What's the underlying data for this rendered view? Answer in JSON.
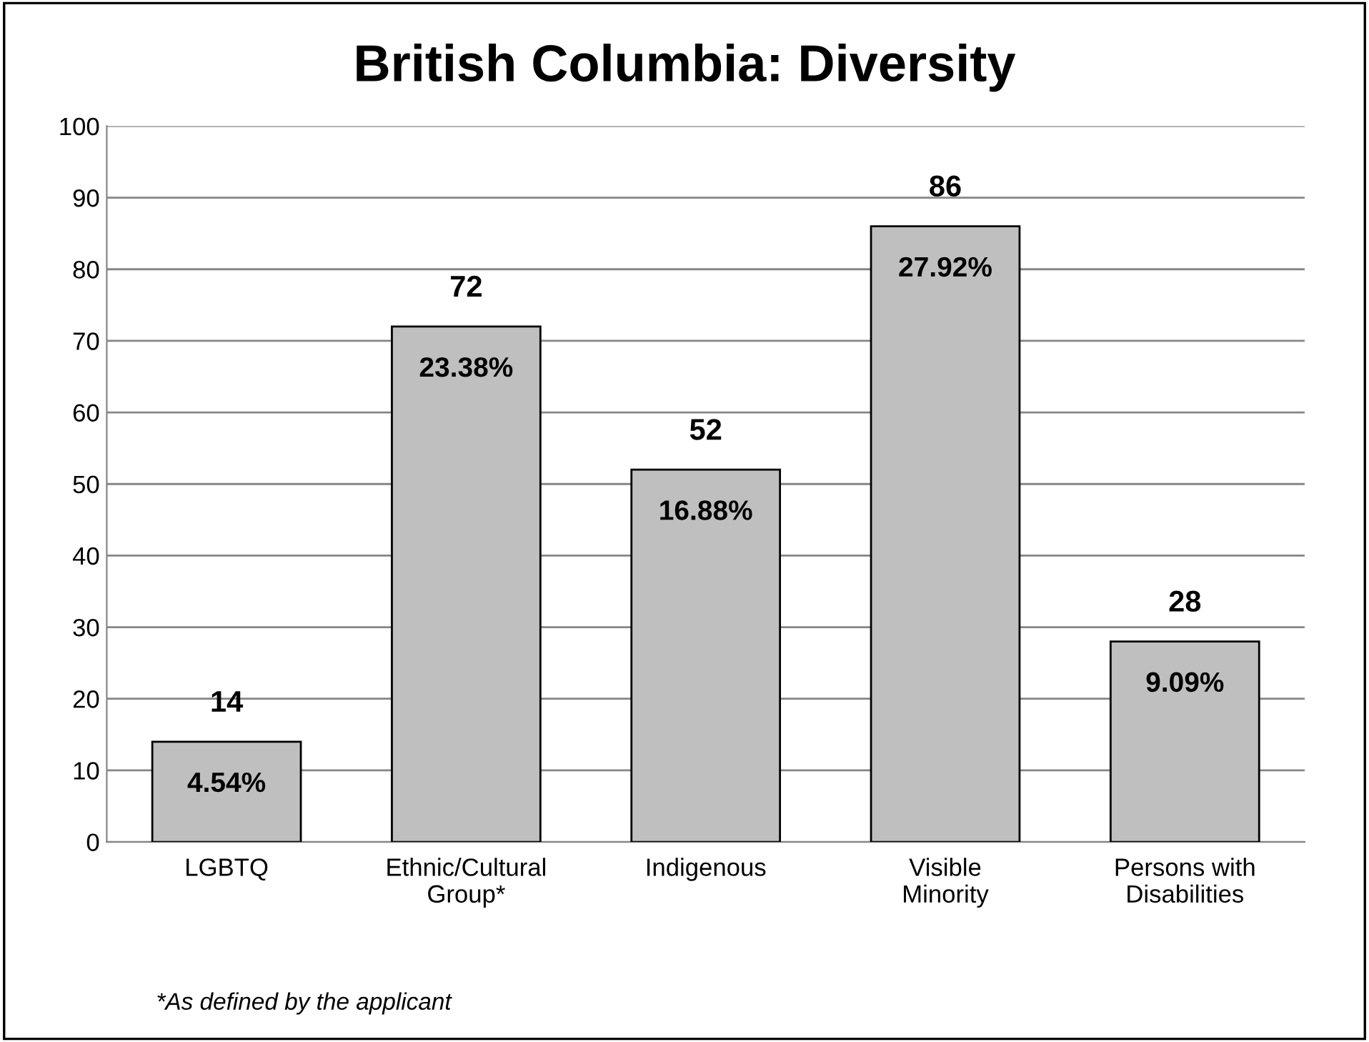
{
  "chart_data": {
    "type": "bar",
    "title": "British Columbia: Diversity",
    "categories": [
      "LGBTQ",
      "Ethnic/Cultural\nGroup*",
      "Indigenous",
      "Visible\nMinority",
      "Persons with\nDisabilities"
    ],
    "values": [
      14,
      72,
      52,
      86,
      28
    ],
    "color": "#bfbfbf",
    "data_labels": true,
    "ylim": [
      0,
      100
    ],
    "yticks": [
      0,
      10,
      20,
      30,
      40,
      50,
      60,
      70,
      80,
      90,
      100
    ],
    "grid": "y",
    "annotations": [
      "4.54%",
      "23.38%",
      "16.88%",
      "27.92%",
      "9.09%",
      "*As defined by the applicant"
    ]
  }
}
